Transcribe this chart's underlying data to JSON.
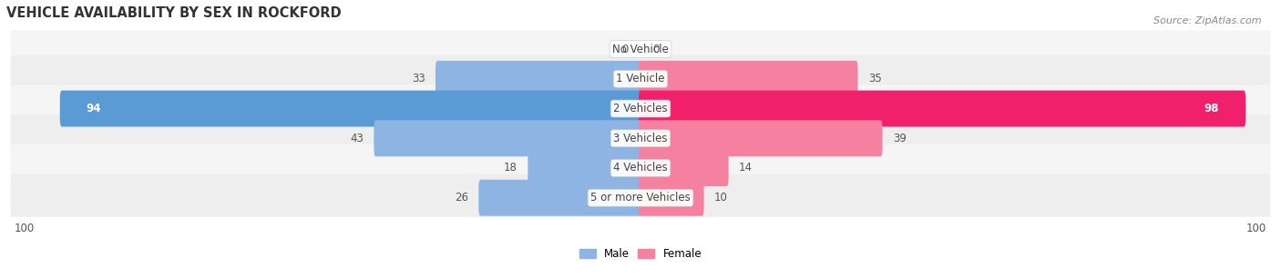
{
  "title": "VEHICLE AVAILABILITY BY SEX IN ROCKFORD",
  "source": "Source: ZipAtlas.com",
  "categories": [
    "No Vehicle",
    "1 Vehicle",
    "2 Vehicles",
    "3 Vehicles",
    "4 Vehicles",
    "5 or more Vehicles"
  ],
  "male_values": [
    0,
    33,
    94,
    43,
    18,
    26
  ],
  "female_values": [
    0,
    35,
    98,
    39,
    14,
    10
  ],
  "male_color": "#8eb4e3",
  "female_color": "#f580a0",
  "male_color_strong": "#5b9bd5",
  "female_color_strong": "#f0206a",
  "bar_height": 0.62,
  "row_bg_even": "#f2f2f2",
  "row_bg_odd": "#ebebeb",
  "x_max": 100,
  "legend_male": "Male",
  "legend_female": "Female",
  "title_fontsize": 10.5,
  "label_fontsize": 8.5,
  "value_fontsize": 8.5,
  "axis_fontsize": 8.5,
  "source_fontsize": 8
}
